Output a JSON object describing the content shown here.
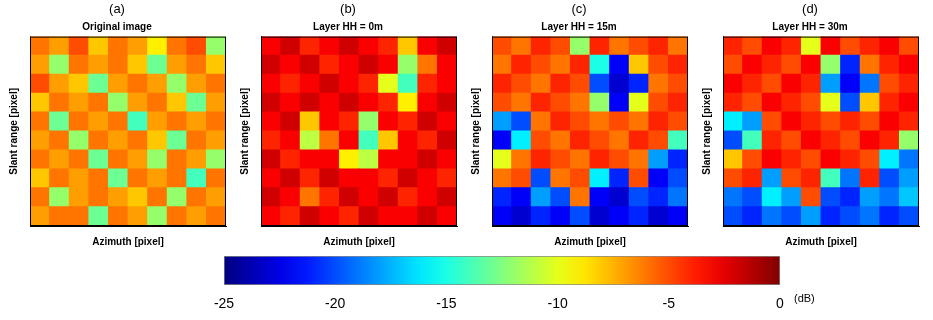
{
  "chart_data": [
    {
      "type": "heatmap",
      "panel": "(a)",
      "title": "Original image",
      "xlabel": "Azimuth [pixel]",
      "ylabel": "Slant range [pixel]",
      "xlim": [
        0,
        10
      ],
      "ylim": [
        0,
        10
      ],
      "tick_labels": false,
      "grid": false,
      "cells": [
        [
          -6,
          -7,
          -5,
          -8,
          -6,
          -7,
          -9,
          -6,
          -5,
          -12
        ],
        [
          -7,
          -12,
          -6,
          -7,
          -6,
          -8,
          -13,
          -7,
          -6,
          -8
        ],
        [
          -5,
          -7,
          -8,
          -13,
          -7,
          -6,
          -7,
          -12,
          -7,
          -6
        ],
        [
          -8,
          -6,
          -7,
          -6,
          -12,
          -7,
          -6,
          -8,
          -13,
          -7
        ],
        [
          -6,
          -13,
          -6,
          -7,
          -6,
          -14,
          -7,
          -6,
          -7,
          -6
        ],
        [
          -7,
          -6,
          -12,
          -6,
          -7,
          -6,
          -8,
          -13,
          -6,
          -7
        ],
        [
          -6,
          -7,
          -6,
          -13,
          -6,
          -7,
          -12,
          -6,
          -7,
          -12
        ],
        [
          -8,
          -6,
          -7,
          -6,
          -13,
          -6,
          -7,
          -6,
          -14,
          -6
        ],
        [
          -6,
          -12,
          -7,
          -6,
          -7,
          -8,
          -6,
          -12,
          -6,
          -7
        ],
        [
          -7,
          -6,
          -6,
          -13,
          -6,
          -7,
          -12,
          -6,
          -7,
          -6
        ]
      ]
    },
    {
      "type": "heatmap",
      "panel": "(b)",
      "title": "Layer HH = 0m",
      "xlabel": "Azimuth [pixel]",
      "ylabel": "Slant range [pixel]",
      "xlim": [
        0,
        10
      ],
      "ylim": [
        0,
        10
      ],
      "tick_labels": false,
      "grid": false,
      "cells": [
        [
          -3,
          -2,
          -4,
          -3,
          -2,
          -3,
          -4,
          -8,
          -3,
          -2
        ],
        [
          -2,
          -3,
          -2,
          -4,
          -3,
          -2,
          -3,
          -12,
          -6,
          -3
        ],
        [
          -3,
          -4,
          -3,
          -2,
          -3,
          -4,
          -10,
          -14,
          -4,
          -3
        ],
        [
          -2,
          -3,
          -2,
          -3,
          -2,
          -3,
          -4,
          -9,
          -3,
          -2
        ],
        [
          -3,
          -2,
          -8,
          -3,
          -4,
          -12,
          -3,
          -4,
          -2,
          -3
        ],
        [
          -4,
          -3,
          -11,
          -6,
          -3,
          -14,
          -8,
          -3,
          -4,
          -2
        ],
        [
          -2,
          -4,
          -3,
          -3,
          -9,
          -11,
          -3,
          -3,
          -2,
          -3
        ],
        [
          -3,
          -2,
          -4,
          -2,
          -3,
          -3,
          -4,
          -2,
          -3,
          -4
        ],
        [
          -2,
          -3,
          -6,
          -4,
          -2,
          -3,
          -2,
          -4,
          -3,
          -2
        ],
        [
          -3,
          -4,
          -2,
          -3,
          -4,
          -2,
          -3,
          -3,
          -2,
          -3
        ]
      ]
    },
    {
      "type": "heatmap",
      "panel": "(c)",
      "title": "Layer HH = 15m",
      "xlabel": "Azimuth [pixel]",
      "ylabel": "Slant range [pixel]",
      "xlim": [
        0,
        10
      ],
      "ylim": [
        0,
        10
      ],
      "tick_labels": false,
      "grid": false,
      "cells": [
        [
          -5,
          -6,
          -4,
          -5,
          -12,
          -4,
          -6,
          -5,
          -4,
          -6
        ],
        [
          -6,
          -4,
          -5,
          -6,
          -4,
          -15,
          -22,
          -8,
          -5,
          -4
        ],
        [
          -4,
          -5,
          -6,
          -4,
          -5,
          -20,
          -23,
          -21,
          -6,
          -5
        ],
        [
          -5,
          -6,
          -4,
          -5,
          -6,
          -12,
          -22,
          -10,
          -5,
          -4
        ],
        [
          -18,
          -20,
          -6,
          -4,
          -5,
          -6,
          -5,
          -6,
          -4,
          -5
        ],
        [
          -22,
          -16,
          -5,
          -6,
          -4,
          -5,
          -6,
          -4,
          -5,
          -14
        ],
        [
          -10,
          -6,
          -4,
          -5,
          -6,
          -4,
          -5,
          -6,
          -18,
          -21
        ],
        [
          -6,
          -5,
          -20,
          -6,
          -5,
          -16,
          -21,
          -5,
          -22,
          -20
        ],
        [
          -21,
          -22,
          -18,
          -20,
          -6,
          -22,
          -23,
          -20,
          -21,
          -19
        ],
        [
          -22,
          -23,
          -21,
          -22,
          -20,
          -23,
          -22,
          -21,
          -23,
          -22
        ]
      ]
    },
    {
      "type": "heatmap",
      "panel": "(d)",
      "title": "Layer HH = 30m",
      "xlabel": "Azimuth [pixel]",
      "ylabel": "Slant range [pixel]",
      "xlim": [
        0,
        10
      ],
      "ylim": [
        0,
        10
      ],
      "tick_labels": false,
      "grid": false,
      "cells": [
        [
          -4,
          -5,
          -3,
          -4,
          -10,
          -3,
          -5,
          -4,
          -3,
          -5
        ],
        [
          -5,
          -3,
          -4,
          -5,
          -3,
          -12,
          -21,
          -6,
          -4,
          -3
        ],
        [
          -3,
          -4,
          -5,
          -3,
          -4,
          -18,
          -22,
          -19,
          -5,
          -4
        ],
        [
          -4,
          -5,
          -3,
          -4,
          -5,
          -10,
          -20,
          -8,
          -4,
          -3
        ],
        [
          -16,
          -18,
          -5,
          -3,
          -4,
          -5,
          -4,
          -5,
          -3,
          -4
        ],
        [
          -20,
          -14,
          -4,
          -5,
          -3,
          -4,
          -5,
          -3,
          -4,
          -12
        ],
        [
          -8,
          -5,
          -3,
          -4,
          -5,
          -3,
          -4,
          -5,
          -16,
          -19
        ],
        [
          -5,
          -4,
          -18,
          -5,
          -4,
          -14,
          -19,
          -4,
          -20,
          -18
        ],
        [
          -19,
          -20,
          -16,
          -18,
          -5,
          -20,
          -21,
          -18,
          -19,
          -17
        ],
        [
          -20,
          -21,
          -19,
          -20,
          -18,
          -21,
          -20,
          -19,
          -21,
          -20
        ]
      ]
    }
  ],
  "colorbar": {
    "range": [
      -25,
      0
    ],
    "ticks": [
      -25,
      -20,
      -15,
      -10,
      -5,
      0
    ],
    "unit": "(dB)"
  }
}
